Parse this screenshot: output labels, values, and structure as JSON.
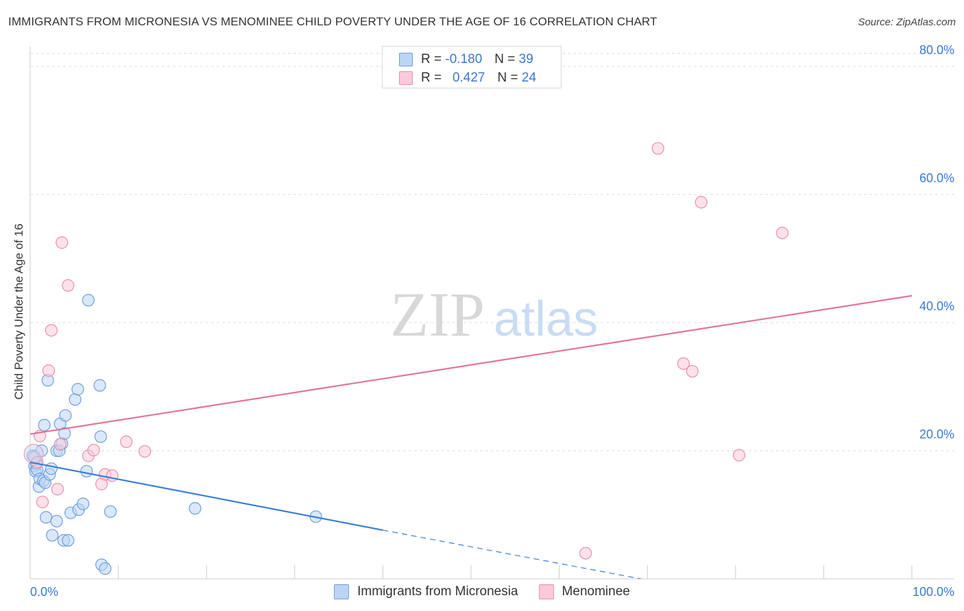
{
  "header": {
    "title": "IMMIGRANTS FROM MICRONESIA VS MENOMINEE CHILD POVERTY UNDER THE AGE OF 16 CORRELATION CHART",
    "source": "Source: ZipAtlas.com"
  },
  "watermark": {
    "zip": "ZIP",
    "atlas": "atlas"
  },
  "legend_top": {
    "rows": [
      {
        "r_label": "R =",
        "r_value": "-0.180",
        "n_label": "N =",
        "n_value": "39"
      },
      {
        "r_label": "R =",
        "r_value": "0.427",
        "n_label": "N =",
        "n_value": "24"
      }
    ]
  },
  "legend_bottom": {
    "items": [
      {
        "label": "Immigrants from Micronesia"
      },
      {
        "label": "Menominee"
      }
    ]
  },
  "colors": {
    "blue_fill": "#bcd5f5",
    "blue_stroke": "#6e9fdf",
    "blue_line": "#3b7dd8",
    "pink_fill": "#fbcad9",
    "pink_stroke": "#ea8fae",
    "pink_line": "#e2749a",
    "axis_label": "#3a78d4",
    "grid": "#dcdcdc"
  },
  "chart_data": {
    "type": "scatter",
    "title": "IMMIGRANTS FROM MICRONESIA VS MENOMINEE CHILD POVERTY UNDER THE AGE OF 16 CORRELATION CHART",
    "xlabel": "",
    "ylabel": "Child Poverty Under the Age of 16",
    "xlim": [
      0,
      100
    ],
    "ylim": [
      0,
      80
    ],
    "x_tick_labels": [
      {
        "value": 0,
        "label": "0.0%"
      },
      {
        "value": 100,
        "label": "100.0%"
      }
    ],
    "y_tick_labels": [
      {
        "value": 20,
        "label": "20.0%"
      },
      {
        "value": 40,
        "label": "40.0%"
      },
      {
        "value": 60,
        "label": "60.0%"
      },
      {
        "value": 80,
        "label": "80.0%"
      }
    ],
    "grid": true,
    "legend_position": "top-center",
    "series": [
      {
        "name": "Immigrants from Micronesia",
        "color": "blue",
        "points": [
          [
            0.3,
            19.2
          ],
          [
            0.5,
            17.6
          ],
          [
            0.6,
            16.8
          ],
          [
            0.7,
            18.0
          ],
          [
            0.8,
            17.0
          ],
          [
            1.0,
            14.4
          ],
          [
            1.1,
            15.6
          ],
          [
            1.3,
            20.0
          ],
          [
            1.5,
            15.3
          ],
          [
            1.6,
            24.0
          ],
          [
            1.7,
            15.0
          ],
          [
            1.8,
            9.6
          ],
          [
            2.0,
            31.0
          ],
          [
            2.2,
            16.3
          ],
          [
            2.4,
            17.2
          ],
          [
            2.5,
            6.8
          ],
          [
            3.0,
            20.0
          ],
          [
            3.0,
            9.0
          ],
          [
            3.3,
            20.0
          ],
          [
            3.4,
            24.2
          ],
          [
            3.6,
            21.1
          ],
          [
            3.8,
            6.0
          ],
          [
            3.9,
            22.7
          ],
          [
            4.0,
            25.5
          ],
          [
            4.3,
            6.0
          ],
          [
            4.6,
            10.3
          ],
          [
            5.1,
            28.0
          ],
          [
            5.4,
            29.6
          ],
          [
            5.5,
            10.8
          ],
          [
            6.0,
            11.7
          ],
          [
            6.4,
            16.8
          ],
          [
            6.6,
            43.5
          ],
          [
            7.9,
            30.2
          ],
          [
            8.0,
            22.2
          ],
          [
            8.1,
            2.2
          ],
          [
            8.5,
            1.6
          ],
          [
            9.1,
            10.5
          ],
          [
            18.7,
            11.0
          ],
          [
            32.4,
            9.7
          ]
        ],
        "trend": {
          "from": [
            0,
            18.2
          ],
          "to": [
            40,
            7.6
          ],
          "dashed_to": [
            100,
            -8.0
          ]
        }
      },
      {
        "name": "Menominee",
        "color": "pink",
        "points": [
          [
            0.5,
            19.0
          ],
          [
            0.8,
            18.2
          ],
          [
            1.1,
            22.3
          ],
          [
            1.4,
            12.0
          ],
          [
            2.1,
            32.5
          ],
          [
            2.4,
            38.8
          ],
          [
            3.1,
            14.0
          ],
          [
            3.4,
            21.0
          ],
          [
            3.6,
            52.5
          ],
          [
            4.3,
            45.8
          ],
          [
            6.6,
            19.2
          ],
          [
            7.2,
            20.1
          ],
          [
            8.1,
            14.8
          ],
          [
            8.5,
            16.3
          ],
          [
            9.3,
            16.1
          ],
          [
            10.9,
            21.4
          ],
          [
            13.0,
            19.9
          ],
          [
            63.0,
            4.0
          ],
          [
            71.2,
            67.2
          ],
          [
            74.1,
            33.6
          ],
          [
            75.1,
            32.4
          ],
          [
            76.1,
            58.8
          ],
          [
            80.4,
            19.3
          ],
          [
            85.3,
            54.0
          ]
        ],
        "trend": {
          "from": [
            0,
            22.6
          ],
          "to": [
            100,
            44.2
          ]
        }
      }
    ]
  }
}
